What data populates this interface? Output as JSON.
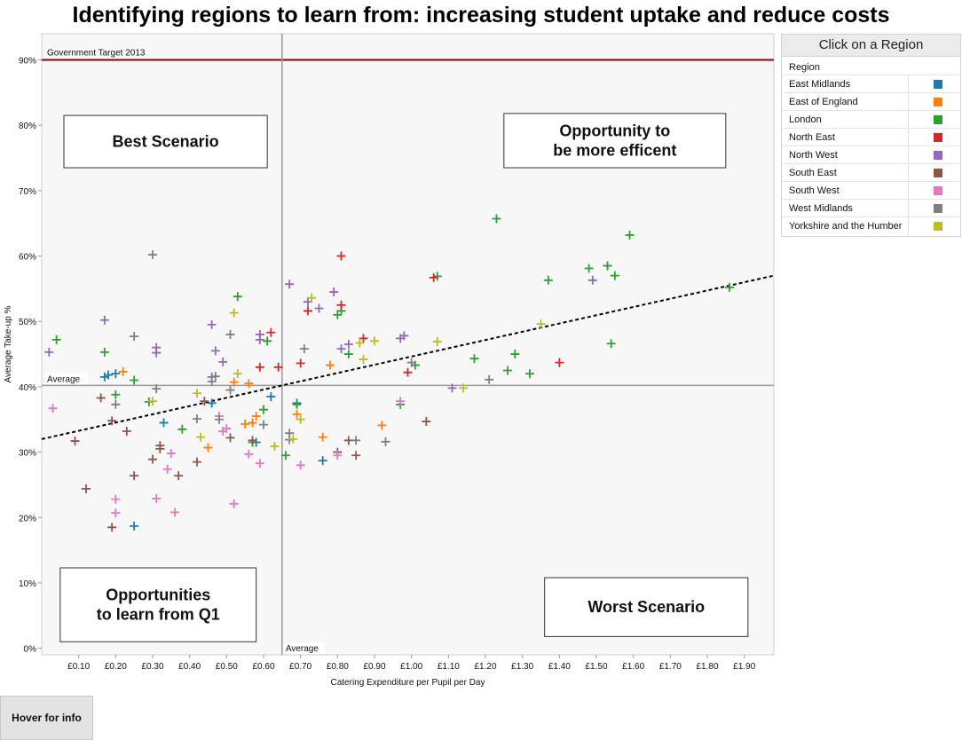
{
  "title": "Identifying regions to learn from: increasing student uptake and reduce costs",
  "legend": {
    "header": "Click on a Region",
    "subtitle": "Region",
    "items": [
      {
        "label": "East Midlands",
        "color": "#1f77b4"
      },
      {
        "label": "East of England",
        "color": "#ff7f0e"
      },
      {
        "label": "London",
        "color": "#2ca02c"
      },
      {
        "label": "North East",
        "color": "#d62728"
      },
      {
        "label": "North West",
        "color": "#9467bd"
      },
      {
        "label": "South East",
        "color": "#8c564b"
      },
      {
        "label": "South West",
        "color": "#e377c2"
      },
      {
        "label": "West Midlands",
        "color": "#7f7f7f"
      },
      {
        "label": "Yorkshire and the Humber",
        "color": "#bcbd22"
      }
    ]
  },
  "hover_button": "Hover for info",
  "chart_data": {
    "type": "scatter",
    "xlabel": "Catering Expenditure per Pupil per Day",
    "ylabel": "Average Take-up %",
    "xlim": [
      0.0,
      1.98
    ],
    "ylim": [
      -1,
      94
    ],
    "x_ticks": [
      "£0.10",
      "£0.20",
      "£0.30",
      "£0.40",
      "£0.50",
      "£0.60",
      "£0.70",
      "£0.80",
      "£0.90",
      "£1.00",
      "£1.10",
      "£1.20",
      "£1.30",
      "£1.40",
      "£1.50",
      "£1.60",
      "£1.70",
      "£1.80",
      "£1.90"
    ],
    "x_tick_values": [
      0.1,
      0.2,
      0.3,
      0.4,
      0.5,
      0.6,
      0.7,
      0.8,
      0.9,
      1.0,
      1.1,
      1.2,
      1.3,
      1.4,
      1.5,
      1.6,
      1.7,
      1.8,
      1.9
    ],
    "y_ticks": [
      "0%",
      "10%",
      "20%",
      "30%",
      "40%",
      "50%",
      "60%",
      "70%",
      "80%",
      "90%"
    ],
    "y_tick_values": [
      0,
      10,
      20,
      30,
      40,
      50,
      60,
      70,
      80,
      90
    ],
    "target": {
      "label": "Government Target 2013",
      "value": 90,
      "color": "#8b0000"
    },
    "average_x": {
      "label": "Average",
      "value": 0.65
    },
    "average_y": {
      "label": "Average",
      "value": 40.2
    },
    "trend": {
      "x1": 0.0,
      "y1": 32.0,
      "x2": 1.98,
      "y2": 57.0
    },
    "quadrants": [
      {
        "label": "Best Scenario",
        "x0": 0.06,
        "x1": 0.61,
        "y0": 73.5,
        "y1": 81.5
      },
      {
        "label": "Opportunity to be more efficent",
        "x0": 1.25,
        "x1": 1.85,
        "y0": 73.5,
        "y1": 81.8
      },
      {
        "label": "Opportunities to learn from Q1",
        "x0": 0.05,
        "x1": 0.58,
        "y0": 1.0,
        "y1": 12.3
      },
      {
        "label": "Worst Scenario",
        "x0": 1.36,
        "x1": 1.91,
        "y0": 1.8,
        "y1": 10.8
      }
    ],
    "series": [
      {
        "name": "East Midlands",
        "color": "#1f77b4",
        "points": [
          [
            0.17,
            41.5
          ],
          [
            0.18,
            41.8
          ],
          [
            0.2,
            42
          ],
          [
            0.33,
            34.5
          ],
          [
            0.46,
            37.5
          ],
          [
            0.58,
            31.5
          ],
          [
            0.62,
            38.5
          ],
          [
            0.69,
            37.5
          ],
          [
            0.76,
            28.7
          ],
          [
            0.25,
            18.7
          ]
        ]
      },
      {
        "name": "East of England",
        "color": "#ff7f0e",
        "points": [
          [
            0.22,
            42.3
          ],
          [
            0.45,
            30.7
          ],
          [
            0.52,
            40.7
          ],
          [
            0.56,
            40.5
          ],
          [
            0.55,
            34.3
          ],
          [
            0.57,
            34.5
          ],
          [
            0.58,
            35.5
          ],
          [
            0.69,
            35.8
          ],
          [
            0.76,
            32.3
          ],
          [
            0.78,
            43.3
          ],
          [
            0.92,
            34.1
          ]
        ]
      },
      {
        "name": "London",
        "color": "#2ca02c",
        "points": [
          [
            0.04,
            47.2
          ],
          [
            0.17,
            45.3
          ],
          [
            0.2,
            38.8
          ],
          [
            0.25,
            41
          ],
          [
            0.29,
            37.7
          ],
          [
            0.38,
            33.5
          ],
          [
            0.53,
            53.8
          ],
          [
            0.6,
            36.5
          ],
          [
            0.61,
            47
          ],
          [
            0.66,
            29.5
          ],
          [
            0.69,
            37.3
          ],
          [
            0.8,
            51
          ],
          [
            0.81,
            51.6
          ],
          [
            0.83,
            45
          ],
          [
            0.97,
            37.3
          ],
          [
            1.01,
            43.3
          ],
          [
            1.07,
            56.9
          ],
          [
            1.17,
            44.3
          ],
          [
            1.23,
            65.7
          ],
          [
            1.26,
            42.5
          ],
          [
            1.28,
            45
          ],
          [
            1.32,
            42
          ],
          [
            1.37,
            56.3
          ],
          [
            1.48,
            58.1
          ],
          [
            1.53,
            58.5
          ],
          [
            1.54,
            46.6
          ],
          [
            1.55,
            57
          ],
          [
            1.59,
            63.2
          ],
          [
            1.86,
            55.2
          ],
          [
            0.57,
            31.5
          ]
        ]
      },
      {
        "name": "North East",
        "color": "#d62728",
        "points": [
          [
            0.59,
            43
          ],
          [
            0.62,
            48.3
          ],
          [
            0.64,
            43
          ],
          [
            0.7,
            43.6
          ],
          [
            0.72,
            51.6
          ],
          [
            0.81,
            60
          ],
          [
            0.81,
            52.5
          ],
          [
            0.87,
            47.4
          ],
          [
            0.99,
            42.2
          ],
          [
            1.06,
            56.7
          ],
          [
            1.4,
            43.7
          ]
        ]
      },
      {
        "name": "North West",
        "color": "#9467bd",
        "points": [
          [
            0.02,
            45.3
          ],
          [
            0.17,
            50.2
          ],
          [
            0.31,
            46
          ],
          [
            0.31,
            45.2
          ],
          [
            0.46,
            49.5
          ],
          [
            0.47,
            45.5
          ],
          [
            0.49,
            43.8
          ],
          [
            0.59,
            48
          ],
          [
            0.59,
            47.2
          ],
          [
            0.67,
            55.7
          ],
          [
            0.72,
            53
          ],
          [
            0.75,
            52
          ],
          [
            0.79,
            54.5
          ],
          [
            0.81,
            45.8
          ],
          [
            0.83,
            46.5
          ],
          [
            0.97,
            47.4
          ],
          [
            0.98,
            47.8
          ],
          [
            1.11,
            39.8
          ],
          [
            1.49,
            56.3
          ],
          [
            0.46,
            41.5
          ]
        ]
      },
      {
        "name": "South East",
        "color": "#8c564b",
        "points": [
          [
            0.09,
            31.7
          ],
          [
            0.12,
            24.4
          ],
          [
            0.16,
            38.3
          ],
          [
            0.19,
            34.8
          ],
          [
            0.19,
            18.5
          ],
          [
            0.23,
            33.2
          ],
          [
            0.25,
            26.4
          ],
          [
            0.3,
            28.9
          ],
          [
            0.32,
            31
          ],
          [
            0.32,
            30.5
          ],
          [
            0.37,
            26.4
          ],
          [
            0.42,
            28.5
          ],
          [
            0.44,
            37.8
          ],
          [
            0.51,
            32.2
          ],
          [
            0.57,
            31.8
          ],
          [
            0.8,
            30
          ],
          [
            0.83,
            31.8
          ],
          [
            0.85,
            29.5
          ],
          [
            1.04,
            34.7
          ]
        ]
      },
      {
        "name": "South West",
        "color": "#e377c2",
        "points": [
          [
            0.03,
            36.7
          ],
          [
            0.2,
            22.8
          ],
          [
            0.2,
            20.7
          ],
          [
            0.31,
            22.9
          ],
          [
            0.34,
            27.4
          ],
          [
            0.35,
            29.8
          ],
          [
            0.36,
            20.8
          ],
          [
            0.48,
            35.5
          ],
          [
            0.49,
            33.2
          ],
          [
            0.5,
            33.6
          ],
          [
            0.52,
            22.1
          ],
          [
            0.56,
            29.7
          ],
          [
            0.59,
            28.3
          ],
          [
            0.7,
            28
          ],
          [
            0.8,
            29.5
          ],
          [
            0.97,
            37.8
          ]
        ]
      },
      {
        "name": "West Midlands",
        "color": "#7f7f7f",
        "points": [
          [
            0.2,
            37.3
          ],
          [
            0.25,
            47.7
          ],
          [
            0.3,
            60.2
          ],
          [
            0.31,
            39.7
          ],
          [
            0.42,
            35.1
          ],
          [
            0.46,
            40.8
          ],
          [
            0.47,
            41.6
          ],
          [
            0.48,
            35
          ],
          [
            0.51,
            48
          ],
          [
            0.51,
            39.5
          ],
          [
            0.6,
            34.2
          ],
          [
            0.67,
            32.9
          ],
          [
            0.67,
            31.9
          ],
          [
            0.71,
            45.8
          ],
          [
            0.85,
            31.8
          ],
          [
            0.93,
            31.6
          ],
          [
            1.0,
            43.7
          ],
          [
            1.21,
            41.1
          ]
        ]
      },
      {
        "name": "Yorkshire and the Humber",
        "color": "#bcbd22",
        "points": [
          [
            0.3,
            37.8
          ],
          [
            0.42,
            39
          ],
          [
            0.43,
            32.3
          ],
          [
            0.52,
            51.3
          ],
          [
            0.53,
            42
          ],
          [
            0.63,
            30.9
          ],
          [
            0.68,
            32
          ],
          [
            0.7,
            35
          ],
          [
            0.73,
            53.6
          ],
          [
            0.87,
            44.2
          ],
          [
            0.9,
            47
          ],
          [
            1.07,
            46.9
          ],
          [
            1.14,
            39.8
          ],
          [
            1.35,
            49.6
          ],
          [
            0.86,
            46.7
          ]
        ]
      }
    ]
  }
}
